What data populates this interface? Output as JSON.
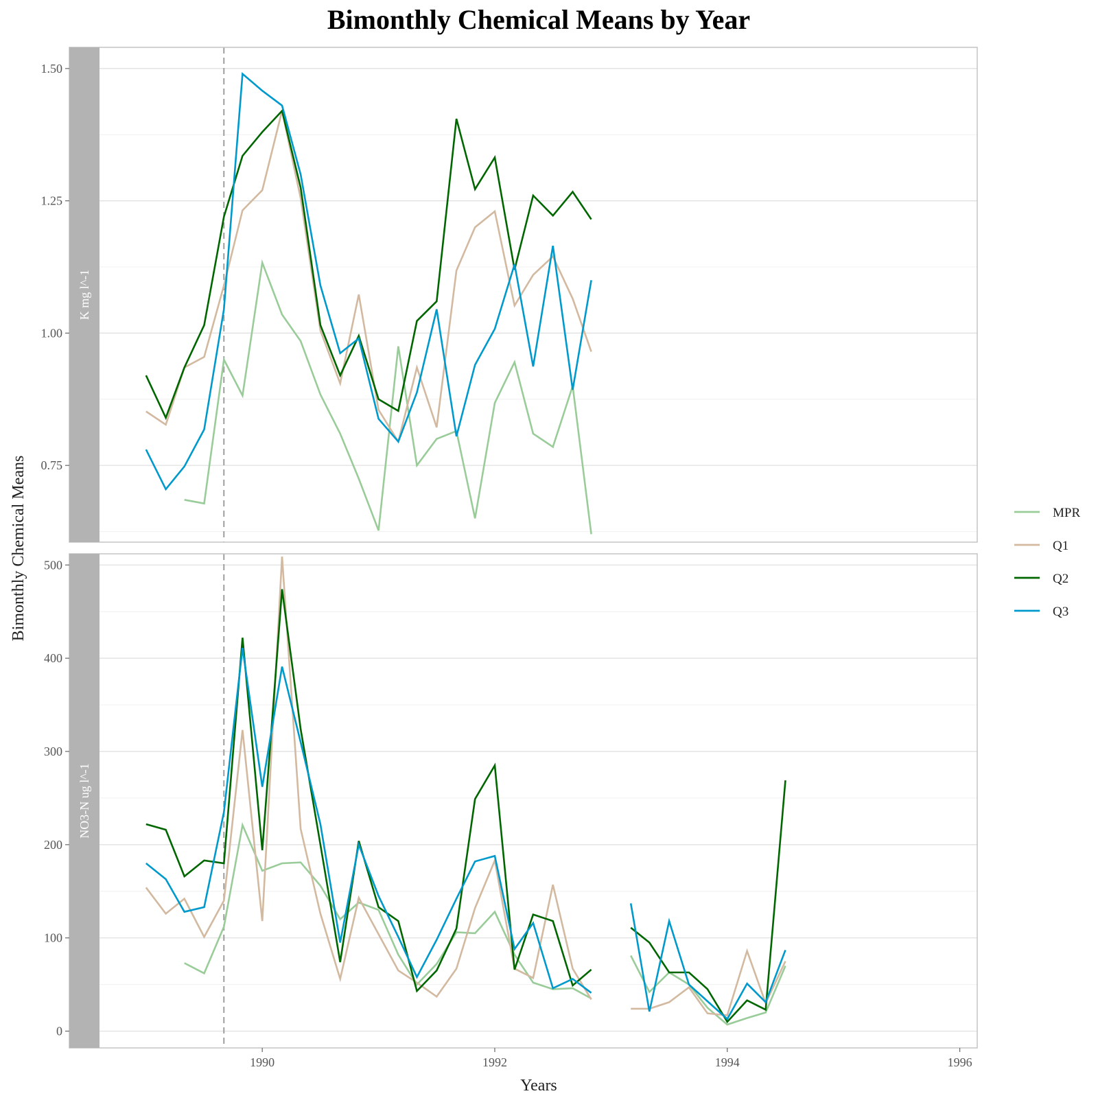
{
  "chart_data": {
    "type": "line",
    "title": "Bimonthly Chemical Means by Year",
    "xlabel": "Years",
    "ylabel": "Bimonthly Chemical Means",
    "xlim": [
      1988.6,
      1996.15
    ],
    "x_ticks": [
      1990,
      1992,
      1994,
      1996
    ],
    "x_tick_labels": [
      "1990",
      "1992",
      "1994",
      "1996"
    ],
    "vline": {
      "x": 1989.67,
      "style": "dashed",
      "color": "#9e9e9e"
    },
    "grid": true,
    "legend_position": "right",
    "colors": {
      "MPR": "#99cc99",
      "Q1": "#d2b9a0",
      "Q2": "#006600",
      "Q3": "#0099cc"
    },
    "panels": [
      {
        "label": "K mg l^-1",
        "ylim": [
          0.605,
          1.54
        ],
        "y_ticks": [
          0.75,
          1.0,
          1.25,
          1.5
        ],
        "y_tick_labels": [
          "0.75",
          "1.00",
          "1.25",
          "1.50"
        ],
        "series": [
          {
            "name": "MPR",
            "points": [
              [
                1989.33,
                0.685
              ],
              [
                1989.5,
                0.678
              ],
              [
                1989.67,
                0.95
              ],
              [
                1989.83,
                0.882
              ],
              [
                1990.0,
                1.133
              ],
              [
                1990.17,
                1.035
              ],
              [
                1990.33,
                0.985
              ],
              [
                1990.5,
                0.884
              ],
              [
                1990.67,
                0.81
              ],
              [
                1990.83,
                0.725
              ],
              [
                1991.0,
                0.627
              ],
              [
                1991.17,
                0.975
              ],
              [
                1991.33,
                0.75
              ],
              [
                1991.5,
                0.8
              ],
              [
                1991.67,
                0.815
              ],
              [
                1991.83,
                0.65
              ],
              [
                1992.0,
                0.868
              ],
              [
                1992.17,
                0.945
              ],
              [
                1992.33,
                0.81
              ],
              [
                1992.5,
                0.785
              ],
              [
                1992.67,
                0.9
              ],
              [
                1992.83,
                0.62
              ]
            ]
          },
          {
            "name": "Q1",
            "points": [
              [
                1989.0,
                0.852
              ],
              [
                1989.17,
                0.827
              ],
              [
                1989.33,
                0.935
              ],
              [
                1989.5,
                0.955
              ],
              [
                1989.67,
                1.09
              ],
              [
                1989.83,
                1.232
              ],
              [
                1990.0,
                1.27
              ],
              [
                1990.17,
                1.42
              ],
              [
                1990.33,
                1.255
              ],
              [
                1990.5,
                1.005
              ],
              [
                1990.67,
                0.905
              ],
              [
                1990.83,
                1.073
              ],
              [
                1991.0,
                0.855
              ],
              [
                1991.17,
                0.795
              ],
              [
                1991.33,
                0.935
              ],
              [
                1991.5,
                0.822
              ],
              [
                1991.67,
                1.118
              ],
              [
                1991.83,
                1.2
              ],
              [
                1992.0,
                1.23
              ],
              [
                1992.17,
                1.052
              ],
              [
                1992.33,
                1.11
              ],
              [
                1992.5,
                1.145
              ],
              [
                1992.67,
                1.065
              ],
              [
                1992.83,
                0.965
              ]
            ]
          },
          {
            "name": "Q2",
            "points": [
              [
                1989.0,
                0.92
              ],
              [
                1989.17,
                0.84
              ],
              [
                1989.33,
                0.935
              ],
              [
                1989.5,
                1.015
              ],
              [
                1989.67,
                1.22
              ],
              [
                1989.83,
                1.335
              ],
              [
                1990.0,
                1.38
              ],
              [
                1990.17,
                1.42
              ],
              [
                1990.33,
                1.275
              ],
              [
                1990.5,
                1.015
              ],
              [
                1990.67,
                0.92
              ],
              [
                1990.83,
                0.995
              ],
              [
                1991.0,
                0.875
              ],
              [
                1991.17,
                0.853
              ],
              [
                1991.33,
                1.023
              ],
              [
                1991.5,
                1.06
              ],
              [
                1991.67,
                1.405
              ],
              [
                1991.83,
                1.272
              ],
              [
                1992.0,
                1.332
              ],
              [
                1992.17,
                1.12
              ],
              [
                1992.33,
                1.26
              ],
              [
                1992.5,
                1.222
              ],
              [
                1992.67,
                1.267
              ],
              [
                1992.83,
                1.215
              ]
            ]
          },
          {
            "name": "Q3",
            "points": [
              [
                1989.0,
                0.78
              ],
              [
                1989.17,
                0.705
              ],
              [
                1989.33,
                0.748
              ],
              [
                1989.5,
                0.818
              ],
              [
                1989.67,
                1.045
              ],
              [
                1989.83,
                1.49
              ],
              [
                1990.0,
                1.458
              ],
              [
                1990.17,
                1.43
              ],
              [
                1990.33,
                1.3
              ],
              [
                1990.5,
                1.09
              ],
              [
                1990.67,
                0.962
              ],
              [
                1990.83,
                0.99
              ],
              [
                1991.0,
                0.838
              ],
              [
                1991.17,
                0.795
              ],
              [
                1991.33,
                0.888
              ],
              [
                1991.5,
                1.045
              ],
              [
                1991.67,
                0.805
              ],
              [
                1991.83,
                0.94
              ],
              [
                1992.0,
                1.008
              ],
              [
                1992.17,
                1.13
              ],
              [
                1992.33,
                0.937
              ],
              [
                1992.5,
                1.165
              ],
              [
                1992.67,
                0.893
              ],
              [
                1992.83,
                1.1
              ]
            ]
          }
        ]
      },
      {
        "label": "NO3-N ug l^-1",
        "ylim": [
          -18,
          512
        ],
        "y_ticks": [
          0,
          100,
          200,
          300,
          400,
          500
        ],
        "y_tick_labels": [
          "0",
          "100",
          "200",
          "300",
          "400",
          "500"
        ],
        "series": [
          {
            "name": "MPR",
            "points": [
              [
                1989.33,
                73
              ],
              [
                1989.5,
                62
              ],
              [
                1989.67,
                112
              ],
              [
                1989.83,
                221
              ],
              [
                1990.0,
                172
              ],
              [
                1990.17,
                180
              ],
              [
                1990.33,
                181
              ],
              [
                1990.5,
                156
              ],
              [
                1990.67,
                120
              ],
              [
                1990.83,
                138
              ],
              [
                1991.0,
                130
              ],
              [
                1991.17,
                82
              ],
              [
                1991.33,
                50
              ],
              [
                1991.5,
                72
              ],
              [
                1991.67,
                106
              ],
              [
                1991.83,
                105
              ],
              [
                1992.0,
                128
              ],
              [
                1992.17,
                82
              ],
              [
                1992.33,
                52
              ],
              [
                1992.5,
                45
              ],
              [
                1992.67,
                46
              ],
              [
                1992.83,
                35
              ],
              null,
              [
                1993.17,
                81
              ],
              [
                1993.33,
                42
              ],
              [
                1993.5,
                63
              ],
              [
                1993.67,
                50
              ],
              [
                1993.83,
                25
              ],
              [
                1994.0,
                7
              ],
              [
                1994.17,
                14
              ],
              [
                1994.33,
                20
              ],
              [
                1994.5,
                70
              ]
            ]
          },
          {
            "name": "Q1",
            "points": [
              [
                1989.0,
                154
              ],
              [
                1989.17,
                126
              ],
              [
                1989.33,
                142
              ],
              [
                1989.5,
                101
              ],
              [
                1989.67,
                140
              ],
              [
                1989.83,
                323
              ],
              [
                1990.0,
                118
              ],
              [
                1990.17,
                509
              ],
              [
                1990.33,
                217
              ],
              [
                1990.5,
                126
              ],
              [
                1990.67,
                56
              ],
              [
                1990.83,
                143
              ],
              [
                1991.0,
                104
              ],
              [
                1991.17,
                65
              ],
              [
                1991.33,
                52
              ],
              [
                1991.5,
                37
              ],
              [
                1991.67,
                67
              ],
              [
                1991.83,
                132
              ],
              [
                1992.0,
                183
              ],
              [
                1992.17,
                67
              ],
              [
                1992.33,
                57
              ],
              [
                1992.5,
                157
              ],
              [
                1992.67,
                67
              ],
              [
                1992.83,
                34
              ],
              null,
              [
                1993.17,
                24
              ],
              [
                1993.33,
                24
              ],
              [
                1993.5,
                31
              ],
              [
                1993.67,
                47
              ],
              [
                1993.83,
                19
              ],
              [
                1994.0,
                17
              ],
              [
                1994.17,
                86
              ],
              [
                1994.33,
                30
              ],
              [
                1994.5,
                75
              ]
            ]
          },
          {
            "name": "Q2",
            "points": [
              [
                1989.0,
                222
              ],
              [
                1989.17,
                216
              ],
              [
                1989.33,
                166
              ],
              [
                1989.5,
                183
              ],
              [
                1989.67,
                180
              ],
              [
                1989.83,
                422
              ],
              [
                1990.0,
                194
              ],
              [
                1990.17,
                474
              ],
              [
                1990.33,
                324
              ],
              [
                1990.5,
                200
              ],
              [
                1990.67,
                74
              ],
              [
                1990.83,
                204
              ],
              [
                1991.0,
                133
              ],
              [
                1991.17,
                118
              ],
              [
                1991.33,
                43
              ],
              [
                1991.5,
                65
              ],
              [
                1991.67,
                110
              ],
              [
                1991.83,
                249
              ],
              [
                1992.0,
                285
              ],
              [
                1992.17,
                66
              ],
              [
                1992.33,
                125
              ],
              [
                1992.5,
                118
              ],
              [
                1992.67,
                49
              ],
              [
                1992.83,
                66
              ],
              null,
              [
                1993.17,
                111
              ],
              [
                1993.33,
                95
              ],
              [
                1993.5,
                63
              ],
              [
                1993.67,
                63
              ],
              [
                1993.83,
                45
              ],
              [
                1994.0,
                10
              ],
              [
                1994.17,
                33
              ],
              [
                1994.33,
                23
              ],
              [
                1994.5,
                269
              ]
            ]
          },
          {
            "name": "Q3",
            "points": [
              [
                1989.0,
                180
              ],
              [
                1989.17,
                163
              ],
              [
                1989.33,
                128
              ],
              [
                1989.5,
                133
              ],
              [
                1989.67,
                235
              ],
              [
                1989.83,
                411
              ],
              [
                1990.0,
                262
              ],
              [
                1990.17,
                391
              ],
              [
                1990.33,
                310
              ],
              [
                1990.5,
                222
              ],
              [
                1990.67,
                95
              ],
              [
                1990.83,
                200
              ],
              [
                1991.0,
                145
              ],
              [
                1991.17,
                101
              ],
              [
                1991.33,
                58
              ],
              [
                1991.5,
                98
              ],
              [
                1991.67,
                142
              ],
              [
                1991.83,
                182
              ],
              [
                1992.0,
                188
              ],
              [
                1992.17,
                88
              ],
              [
                1992.33,
                116
              ],
              [
                1992.5,
                46
              ],
              [
                1992.67,
                56
              ],
              [
                1992.83,
                41
              ],
              null,
              [
                1993.17,
                137
              ],
              [
                1993.33,
                21
              ],
              [
                1993.5,
                118
              ],
              [
                1993.67,
                50
              ],
              [
                1993.83,
                32
              ],
              [
                1994.0,
                13
              ],
              [
                1994.17,
                51
              ],
              [
                1994.33,
                31
              ],
              [
                1994.5,
                87
              ]
            ]
          }
        ]
      }
    ]
  }
}
